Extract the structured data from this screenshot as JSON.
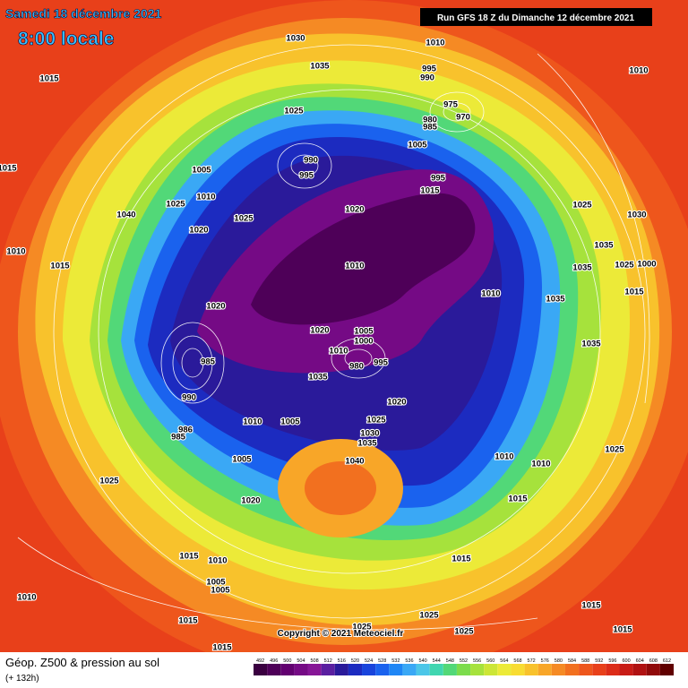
{
  "header": {
    "date": "Samedi 18 décembre 2021",
    "time": "8:00 locale",
    "run": "Run GFS 18 Z du Dimanche 12 décembre 2021"
  },
  "map": {
    "isobar_labels": [
      1030,
      1010,
      1035,
      995,
      990,
      1015,
      1010,
      975,
      970,
      1025,
      980,
      985,
      1005,
      990,
      995,
      1005,
      1010,
      1025,
      1015,
      1020,
      995,
      1015,
      1025,
      1030,
      1040,
      1020,
      1025,
      1010,
      1015,
      1010,
      1035,
      1035,
      1025,
      1000,
      1010,
      1035,
      1015,
      1020,
      1020,
      1005,
      1000,
      1010,
      980,
      995,
      985,
      1035,
      1035,
      990,
      1020,
      1025,
      1030,
      1035,
      1040,
      1010,
      1005,
      986,
      985,
      1005,
      1025,
      1010,
      1010,
      1025,
      1020,
      1015,
      1015,
      1010,
      1005,
      1005,
      1015,
      1010,
      1015,
      1025,
      1025,
      1025,
      1015,
      1015,
      1015
    ],
    "copyright": "Copyright © 2021 Meteociel.fr"
  },
  "footer": {
    "title": "Géop. Z500 & pression au sol",
    "lead": "(+ 132h)"
  },
  "legend": {
    "values": [
      492,
      496,
      500,
      504,
      508,
      512,
      516,
      520,
      524,
      528,
      532,
      536,
      540,
      544,
      548,
      552,
      556,
      560,
      564,
      568,
      572,
      576,
      580,
      584,
      588,
      592,
      596,
      600,
      604,
      608,
      612
    ],
    "colors": [
      "#3a0040",
      "#4e0058",
      "#620070",
      "#750a85",
      "#861596",
      "#5a1fa0",
      "#2a1a9a",
      "#1c2bc0",
      "#1844dc",
      "#1a62ee",
      "#1f86f5",
      "#3aa8f5",
      "#4cc6e8",
      "#40d6b0",
      "#52d878",
      "#7cdc4c",
      "#a6e23c",
      "#cce636",
      "#ecea38",
      "#f8dc32",
      "#f8c22c",
      "#f8a628",
      "#f58a24",
      "#f2701f",
      "#ee561c",
      "#e8401a",
      "#dc2c18",
      "#c81c16",
      "#b01212",
      "#900a0a",
      "#600000"
    ]
  }
}
